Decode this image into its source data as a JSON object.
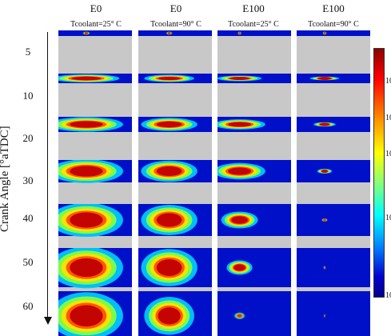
{
  "columns": [
    {
      "fuel": "E0",
      "coolant_label": "T<sub>coolant</sub>=25° C",
      "coolant_text": "Tcoolant=25° C"
    },
    {
      "fuel": "E0",
      "coolant_label": "",
      "coolant_text": "Tcoolant=90° C"
    },
    {
      "fuel": "E100",
      "coolant_label": "",
      "coolant_text": "Tcoolant=25° C"
    },
    {
      "fuel": "E100",
      "coolant_label": "",
      "coolant_text": "Tcoolant=90° C"
    }
  ],
  "rows": [
    "5",
    "10",
    "20",
    "30",
    "40",
    "50",
    "60"
  ],
  "axis_title": "Crank Angle [°aTDC]",
  "colorbar_ticks": [
    "10",
    "10",
    "10",
    "10",
    "10"
  ],
  "colors": {
    "background_gray": "#c8c8c8",
    "field_blue": "#0000cd",
    "hot_red": "#b00000"
  }
}
